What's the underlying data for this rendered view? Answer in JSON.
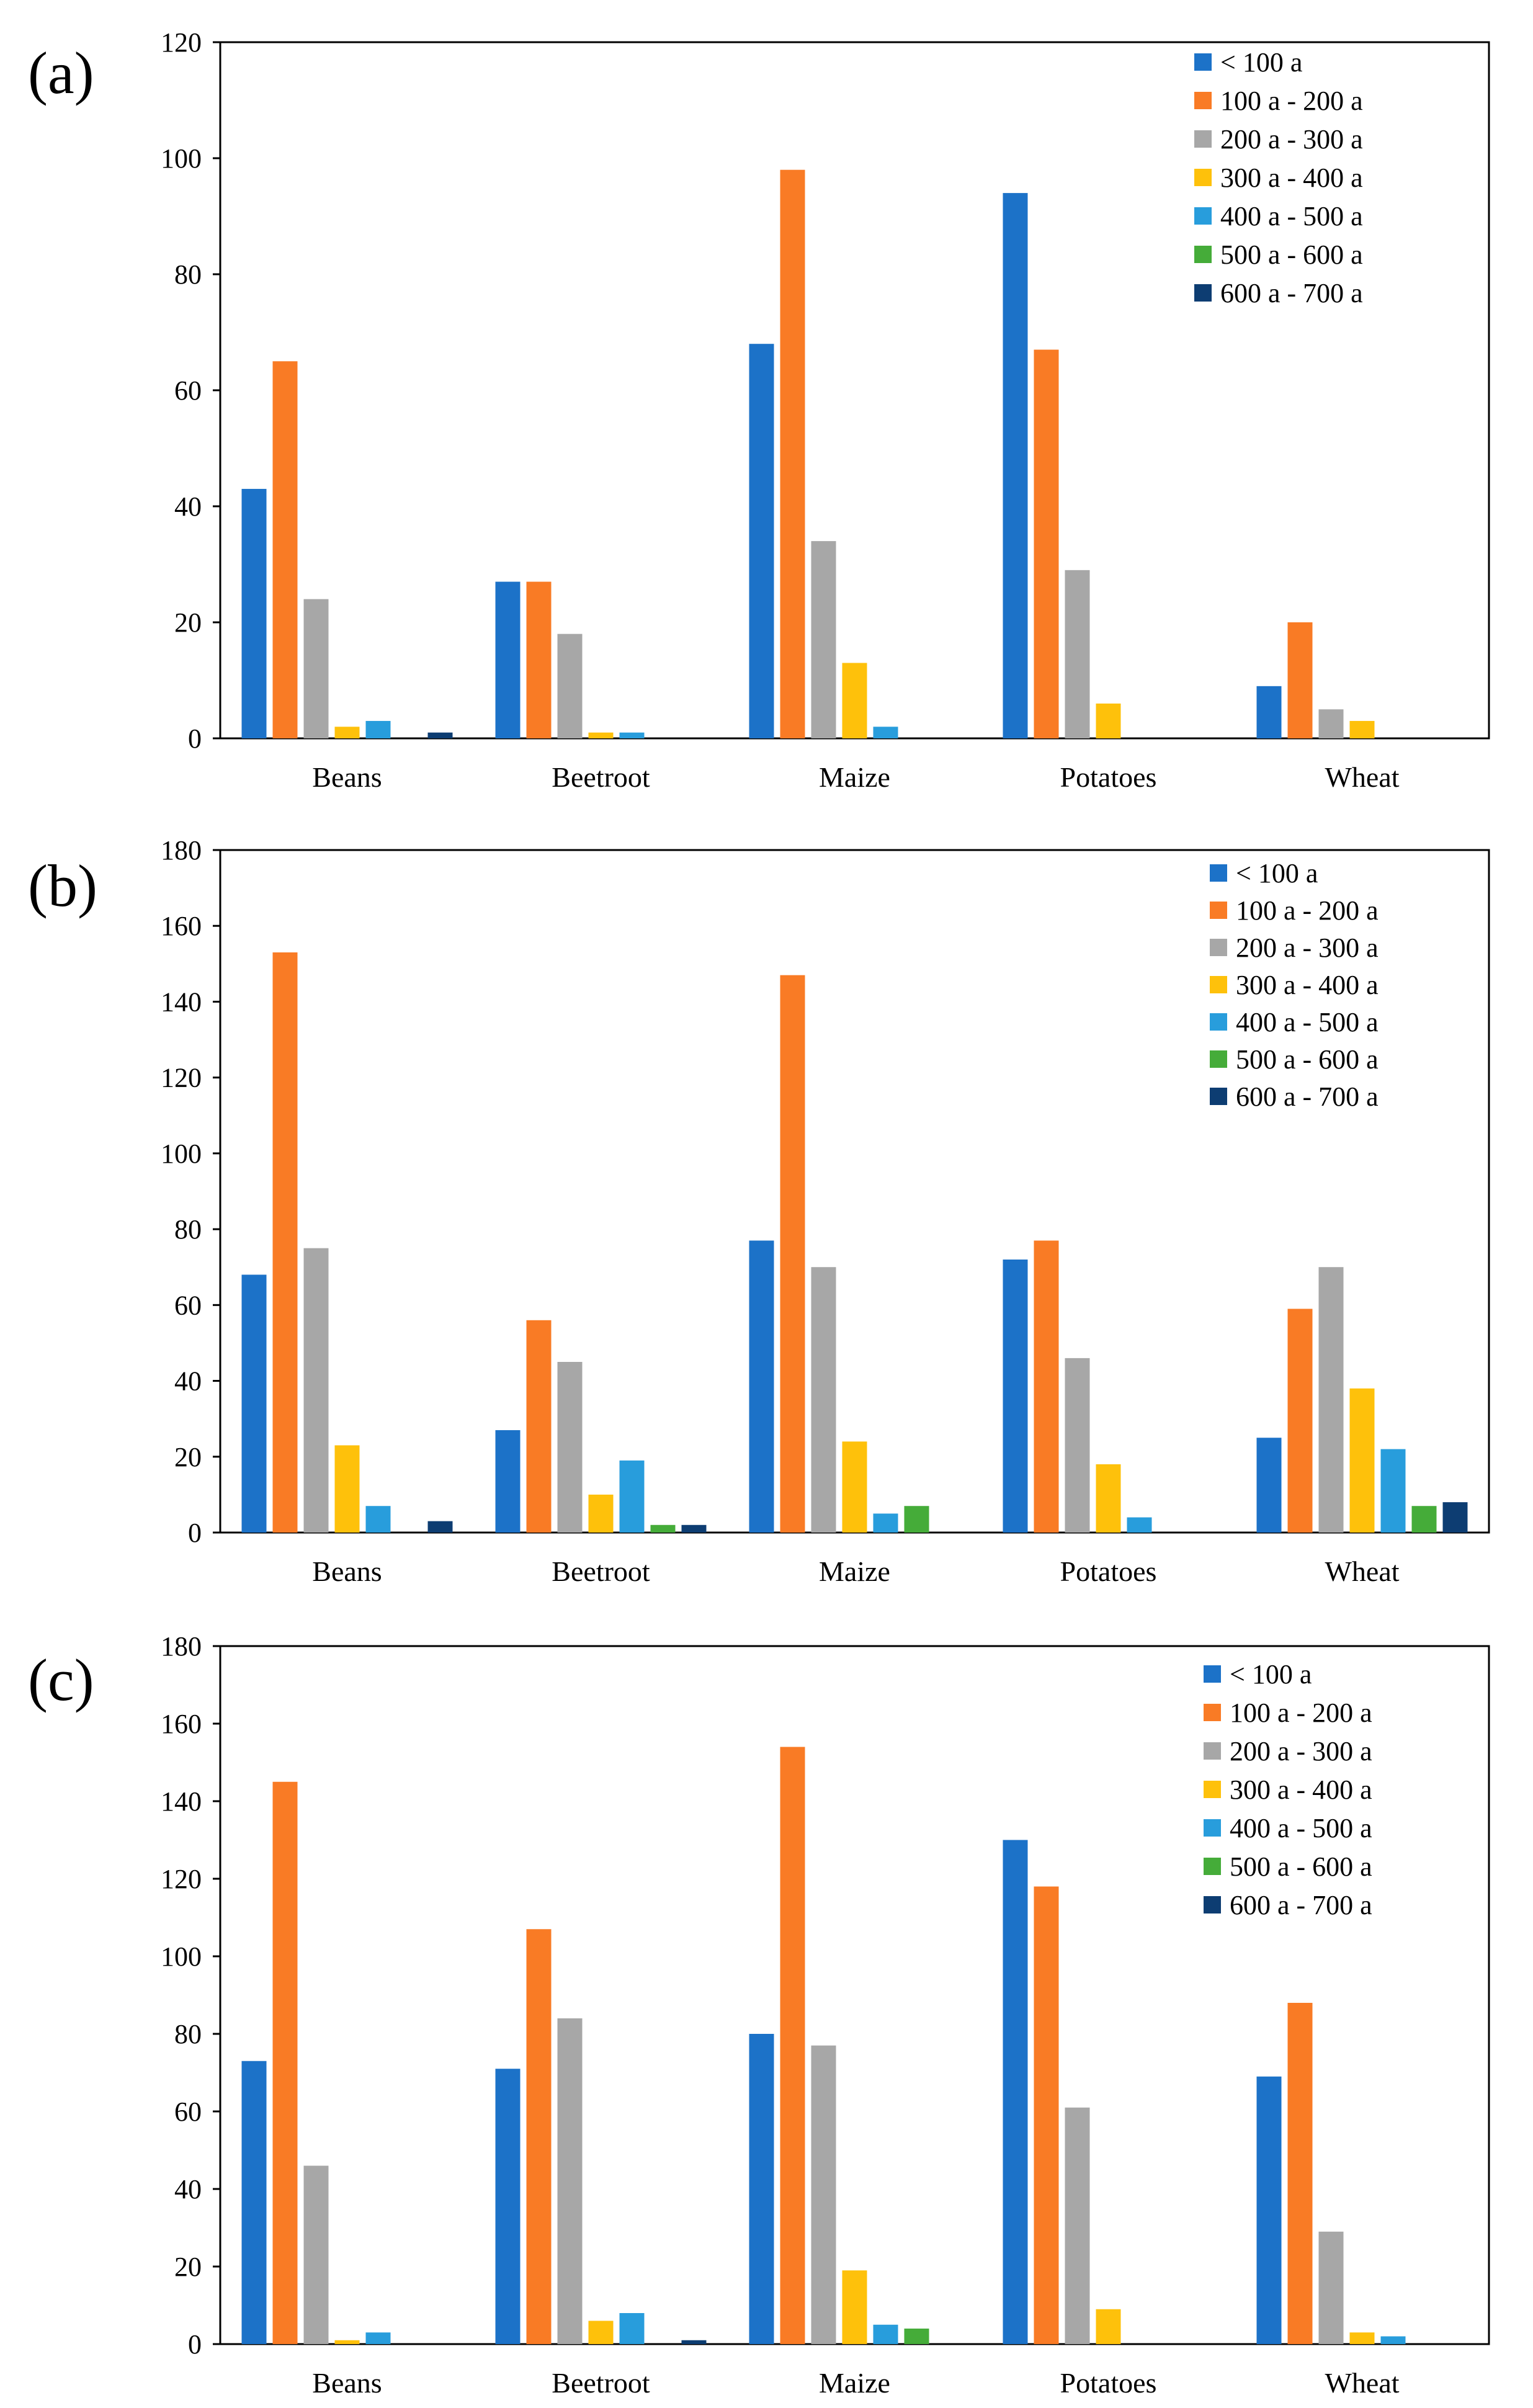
{
  "colors": [
    "#1c72c8",
    "#f97b25",
    "#a7a7a7",
    "#fec10b",
    "#289ddc",
    "#45ac39",
    "#0d3d72"
  ],
  "chart_data": [
    {
      "type": "bar",
      "panel_label": "(a)",
      "categories": [
        "Beans",
        "Beetroot",
        "Maize",
        "Potatoes",
        "Wheat"
      ],
      "ylim": [
        0,
        120
      ],
      "yticks": [
        "0",
        "20",
        "40",
        "60",
        "80",
        "100",
        "120"
      ],
      "legend_position": "top-right",
      "series": [
        {
          "name": "< 100 a",
          "values": [
            43,
            27,
            68,
            94,
            9
          ]
        },
        {
          "name": "100 a - 200 a",
          "values": [
            65,
            27,
            98,
            67,
            20
          ]
        },
        {
          "name": "200 a - 300 a",
          "values": [
            24,
            18,
            34,
            29,
            5
          ]
        },
        {
          "name": "300 a - 400 a",
          "values": [
            2,
            1,
            13,
            6,
            3
          ]
        },
        {
          "name": "400 a - 500 a",
          "values": [
            3,
            1,
            2,
            0,
            0
          ]
        },
        {
          "name": "500 a - 600 a",
          "values": [
            0,
            0,
            0,
            0,
            0
          ]
        },
        {
          "name": "600 a - 700 a",
          "values": [
            1,
            0,
            0,
            0,
            0
          ]
        }
      ]
    },
    {
      "type": "bar",
      "panel_label": "(b)",
      "categories": [
        "Beans",
        "Beetroot",
        "Maize",
        "Potatoes",
        "Wheat"
      ],
      "ylim": [
        0,
        180
      ],
      "yticks": [
        "0",
        "20",
        "40",
        "60",
        "80",
        "100",
        "120",
        "140",
        "160",
        "180"
      ],
      "legend_position": "top-right",
      "series": [
        {
          "name": "< 100 a",
          "values": [
            68,
            27,
            77,
            72,
            25
          ]
        },
        {
          "name": "100 a - 200 a",
          "values": [
            153,
            56,
            147,
            77,
            59
          ]
        },
        {
          "name": "200 a - 300 a",
          "values": [
            75,
            45,
            70,
            46,
            70
          ]
        },
        {
          "name": "300 a - 400 a",
          "values": [
            23,
            10,
            24,
            18,
            38
          ]
        },
        {
          "name": "400 a - 500 a",
          "values": [
            7,
            19,
            5,
            4,
            22
          ]
        },
        {
          "name": "500 a - 600 a",
          "values": [
            0,
            2,
            7,
            0,
            7
          ]
        },
        {
          "name": "600 a - 700 a",
          "values": [
            3,
            2,
            0,
            0,
            8
          ]
        }
      ]
    },
    {
      "type": "bar",
      "panel_label": "(c)",
      "categories": [
        "Beans",
        "Beetroot",
        "Maize",
        "Potatoes",
        "Wheat"
      ],
      "ylim": [
        0,
        180
      ],
      "yticks": [
        "0",
        "20",
        "40",
        "60",
        "80",
        "100",
        "120",
        "140",
        "160",
        "180"
      ],
      "legend_position": "top-right",
      "series": [
        {
          "name": "< 100 a",
          "values": [
            73,
            71,
            80,
            130,
            69
          ]
        },
        {
          "name": "100 a - 200 a",
          "values": [
            145,
            107,
            154,
            118,
            88
          ]
        },
        {
          "name": "200 a - 300 a",
          "values": [
            46,
            84,
            77,
            61,
            29
          ]
        },
        {
          "name": "300 a - 400 a",
          "values": [
            1,
            6,
            19,
            9,
            3
          ]
        },
        {
          "name": "400 a - 500 a",
          "values": [
            3,
            8,
            5,
            0,
            2
          ]
        },
        {
          "name": "500 a - 600 a",
          "values": [
            0,
            0,
            4,
            0,
            0
          ]
        },
        {
          "name": "600 a - 700 a",
          "values": [
            0,
            1,
            0,
            0,
            0
          ]
        }
      ]
    }
  ]
}
